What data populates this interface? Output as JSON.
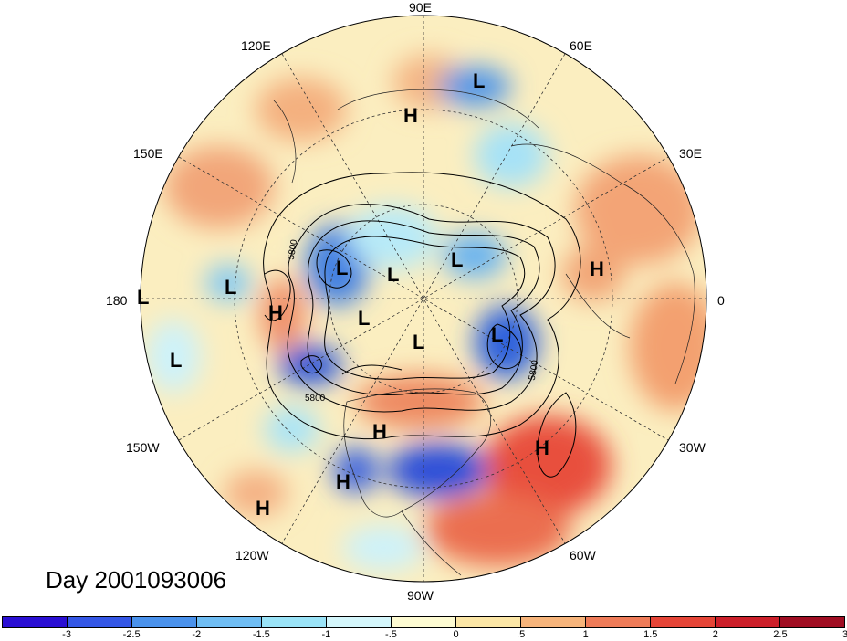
{
  "title": "Day 2001093006",
  "longitude_labels": {
    "lon_90e": "90E",
    "lon_60e": "60E",
    "lon_30e": "30E",
    "lon_0": "0",
    "lon_30w": "30W",
    "lon_60w": "60W",
    "lon_90w": "90W",
    "lon_120w": "120W",
    "lon_150w": "150W",
    "lon_180": "180",
    "lon_150e": "150E",
    "lon_120e": "120E"
  },
  "contour_labels": [
    "5800",
    "5800",
    "5800"
  ],
  "pressure_centers": [
    {
      "type": "L",
      "label": "L"
    },
    {
      "type": "H",
      "label": "H"
    },
    {
      "type": "L",
      "label": "L"
    },
    {
      "type": "L",
      "label": "L"
    },
    {
      "type": "L",
      "label": "L"
    },
    {
      "type": "H",
      "label": "H"
    },
    {
      "type": "L",
      "label": "L"
    },
    {
      "type": "L",
      "label": "L"
    },
    {
      "type": "L",
      "label": "L"
    },
    {
      "type": "L",
      "label": "L"
    },
    {
      "type": "H",
      "label": "H"
    },
    {
      "type": "L",
      "label": "L"
    },
    {
      "type": "L",
      "label": "L"
    },
    {
      "type": "H",
      "label": "H"
    },
    {
      "type": "H",
      "label": "H"
    },
    {
      "type": "H",
      "label": "H"
    },
    {
      "type": "H",
      "label": "H"
    }
  ],
  "colorbar": {
    "colors": [
      "#2a0fd4",
      "#3457e6",
      "#4a92ec",
      "#6fbdf3",
      "#9ae3f7",
      "#d4f6fb",
      "#fdfbd2",
      "#fbe6a6",
      "#f6b47b",
      "#ee7b58",
      "#e54537",
      "#cc1f2a",
      "#a00d22"
    ],
    "ticks": [
      "-3",
      "-2.5",
      "-2",
      "-1.5",
      "-1",
      "-.5",
      "0",
      ".5",
      "1",
      "1.5",
      "2",
      "2.5",
      "3"
    ]
  }
}
